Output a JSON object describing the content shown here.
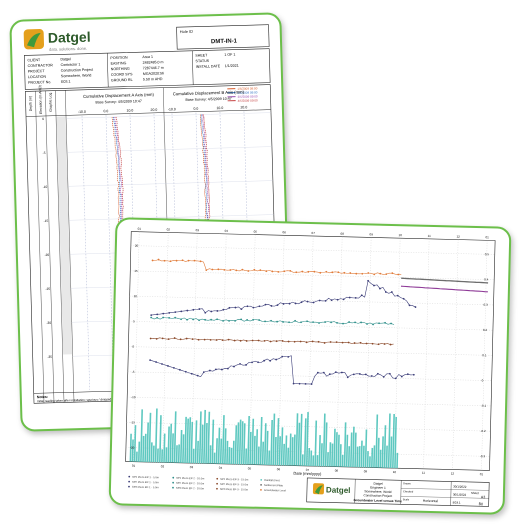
{
  "brand": {
    "name": "Datgel",
    "tagline": "data. solutions. done.",
    "logo_colors": [
      "#e4a01c",
      "#3f9a3c"
    ]
  },
  "back_sheet": {
    "hole_id_label": "Hole ID",
    "hole_id": "DMT-IN-1",
    "info_left": [
      {
        "label": "CLIENT",
        "value": "Datgel"
      },
      {
        "label": "CONTRACTOR",
        "value": "Contractor 1"
      },
      {
        "label": "PROJECT",
        "value": "Construction Project"
      },
      {
        "label": "LOCATION",
        "value": "Somewhere, World"
      },
      {
        "label": "PROJECT No.",
        "value": "E03.1"
      }
    ],
    "info_mid": [
      {
        "label": "POSITION",
        "value": "Area 1"
      },
      {
        "label": "EASTING",
        "value": "2482485.0 m"
      },
      {
        "label": "NORTHING",
        "value": "7287446.7 m"
      },
      {
        "label": "COORD SYS",
        "value": "MGA2020:56"
      },
      {
        "label": "GROUND RL",
        "value": "5.50 m AHD"
      }
    ],
    "info_right": [
      {
        "label": "SHEET",
        "value": "1 OF 1"
      },
      {
        "label": "STATUS",
        "value": ""
      },
      {
        "label": "INSTALL DATE",
        "value": "1/1/2021"
      }
    ],
    "column_headers": [
      "Depth (m)",
      "Elevation (m AHD)",
      "Graphic Log"
    ],
    "chart_a_title": "Cumulative Displacement A Axis (mm)",
    "chart_a_subtitle": "Base Survey: 4/5/2009 10:47",
    "chart_b_title": "Cumulative Displacement B Axis (mm)",
    "chart_b_subtitle": "Base Survey: 4/5/2009 10:47",
    "axis_ticks_a": [
      "-10.0",
      "0.0",
      "10.0",
      "20.0"
    ],
    "axis_ticks_b": [
      "-10.0",
      "0.0",
      "10.0",
      "20.0"
    ],
    "legend": [
      "1/5/2009 09:00",
      "2/5/2009 09:00",
      "3/5/2009 09:00",
      "4/5/2009 09:00"
    ],
    "legend_colors": [
      "#d65a2a",
      "#2b6fc2",
      "#9a4db0",
      "#c23b3b"
    ],
    "depth_ticks": [
      "0",
      "-5",
      "-10",
      "-15",
      "-20",
      "-25",
      "-30",
      "-35"
    ],
    "notes_title": "Notes:",
    "notes_text": "Initial reading taken after installation; spurious / dropped values removed."
  },
  "front_sheet": {
    "x_ticks": [
      "01",
      "02",
      "03",
      "04",
      "05",
      "06",
      "07",
      "08",
      "09",
      "10",
      "11",
      "12",
      "01"
    ],
    "y_ticks_left": [
      "20",
      "15",
      "10",
      "5",
      "0",
      "-5",
      "-10",
      "-15",
      "-20"
    ],
    "y_ticks_right": [
      "0.5",
      "0.4",
      "0.3",
      "0.2",
      "0.1",
      "0",
      "-0.1",
      "-0.2",
      "-0.3"
    ],
    "x_axis_label": "Date (mm/yyyy)",
    "series_colors": {
      "orange": "#e07b39",
      "gray": "#6d6d6d",
      "purple": "#8e3a97",
      "navy": "#3b3d78",
      "teal": "#2f8f8a",
      "brown": "#8b4a2b",
      "bars": "#5ec8c0"
    },
    "legend_items": [
      "SP1 Piezo EP-1 - 5.0m",
      "SP2 Piezo EP-1 - 5.0m",
      "SP3 Piezo EP-1 - 5.0m",
      "SP1 Piezo EP-2 - 10.0m",
      "SP2 Piezo EP-2 - 10.0m",
      "SP3 Piezo EP-2 - 10.0m",
      "SP1 Piezo EP-3 - 15.0m",
      "SP2 Piezo EP-3 - 15.0m",
      "SP3 Piezo EP-3 - 15.0m",
      "Rainfall (mm)",
      "Settlement Plate",
      "Groundwater Level"
    ],
    "title_block": {
      "client": "Datgel",
      "engineer": "Engineer 1",
      "location": "Somewhere, World",
      "project": "Construction Project",
      "title": "Groundwater Level versus Time",
      "drawn_label": "Drawn",
      "checked_label": "Checked",
      "date_1": "30/1/2022",
      "date_2": "30/1/2022",
      "scale_label": "Scale",
      "scale": "Horizontal",
      "sheet_label": "Sheet",
      "sheet": "A3",
      "project_no": "E03.1",
      "rev": "B0"
    }
  }
}
